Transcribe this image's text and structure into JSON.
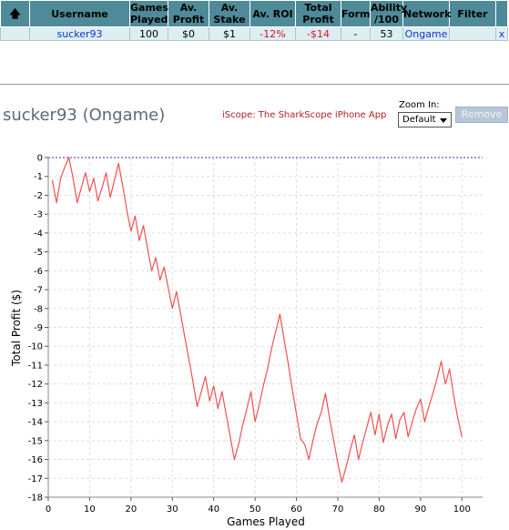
{
  "table": {
    "headers": [
      "",
      "Username",
      "Games Played",
      "Av. Profit",
      "Av. Stake",
      "Av. ROI",
      "Total Profit",
      "Form",
      "Ability /100",
      "Network",
      "Filter"
    ],
    "row": {
      "username": "sucker93",
      "games_played": "100",
      "av_profit": "$0",
      "av_stake": "$1",
      "av_roi": "-12%",
      "total_profit": "-$14",
      "form": "-",
      "ability": "53",
      "network": "Ongame",
      "filter": "",
      "close": "x"
    }
  },
  "player_title": "sucker93 (Ongame)",
  "iscope_link": "iScope: The SharkScope iPhone App",
  "zoom": {
    "label": "Zoom In:",
    "selected": "Default"
  },
  "remove_button": "Remove",
  "colors": {
    "header_bg": "#4f8a98",
    "row_bg": "#dceef2",
    "line": "#f05050",
    "zero_line": "#3333bb",
    "negative_text": "#e0102a"
  },
  "chart_data": {
    "type": "line",
    "title": "",
    "xlabel": "Games Played",
    "ylabel": "Total Profit ($)",
    "xlim": [
      0,
      105
    ],
    "ylim": [
      -18,
      0
    ],
    "xticks": [
      0,
      10,
      20,
      30,
      40,
      50,
      60,
      70,
      80,
      90,
      100
    ],
    "yticks": [
      0,
      -1,
      -2,
      -3,
      -4,
      -5,
      -6,
      -7,
      -8,
      -9,
      -10,
      -11,
      -12,
      -13,
      -14,
      -15,
      -16,
      -17,
      -18
    ],
    "grid": true,
    "reference_line": 0,
    "series": [
      {
        "name": "",
        "x": [
          1,
          2,
          3,
          4,
          5,
          6,
          7,
          8,
          9,
          10,
          11,
          12,
          13,
          14,
          15,
          16,
          17,
          18,
          19,
          20,
          21,
          22,
          23,
          24,
          25,
          26,
          27,
          28,
          29,
          30,
          31,
          32,
          33,
          34,
          35,
          36,
          37,
          38,
          39,
          40,
          41,
          42,
          43,
          44,
          45,
          46,
          47,
          48,
          49,
          50,
          51,
          52,
          53,
          54,
          55,
          56,
          57,
          58,
          59,
          60,
          61,
          62,
          63,
          64,
          65,
          66,
          67,
          68,
          69,
          70,
          71,
          72,
          73,
          74,
          75,
          76,
          77,
          78,
          79,
          80,
          81,
          82,
          83,
          84,
          85,
          86,
          87,
          88,
          89,
          90,
          91,
          92,
          93,
          94,
          95,
          96,
          97,
          98,
          99,
          100
        ],
        "values": [
          -1.2,
          -2.4,
          -1.1,
          -0.5,
          0,
          -1.1,
          -2.4,
          -1.6,
          -0.8,
          -1.8,
          -1.1,
          -2.3,
          -1.6,
          -0.8,
          -2.1,
          -1.2,
          -0.3,
          -1.5,
          -2.8,
          -3.9,
          -3.1,
          -4.4,
          -3.6,
          -4.8,
          -6.0,
          -5.3,
          -6.5,
          -5.8,
          -6.9,
          -8.0,
          -7.1,
          -8.3,
          -9.5,
          -10.7,
          -11.9,
          -13.2,
          -12.4,
          -11.6,
          -12.9,
          -12.1,
          -13.3,
          -12.4,
          -13.6,
          -14.8,
          -16.0,
          -15.2,
          -14.2,
          -13.3,
          -12.4,
          -14.0,
          -13.1,
          -12.1,
          -11.2,
          -10.1,
          -9.2,
          -8.3,
          -9.6,
          -10.9,
          -12.3,
          -13.6,
          -14.9,
          -15.2,
          -16.0,
          -15.0,
          -14.1,
          -13.5,
          -12.5,
          -13.8,
          -15.0,
          -16.2,
          -17.2,
          -16.4,
          -15.5,
          -14.7,
          -16.0,
          -15.1,
          -14.3,
          -13.5,
          -14.7,
          -13.6,
          -15.1,
          -14.2,
          -13.6,
          -14.9,
          -13.9,
          -13.5,
          -14.8,
          -14.0,
          -13.3,
          -12.8,
          -14.0,
          -13.2,
          -12.5,
          -11.7,
          -10.8,
          -12.0,
          -11.2,
          -12.6,
          -13.8,
          -14.8
        ]
      }
    ]
  }
}
